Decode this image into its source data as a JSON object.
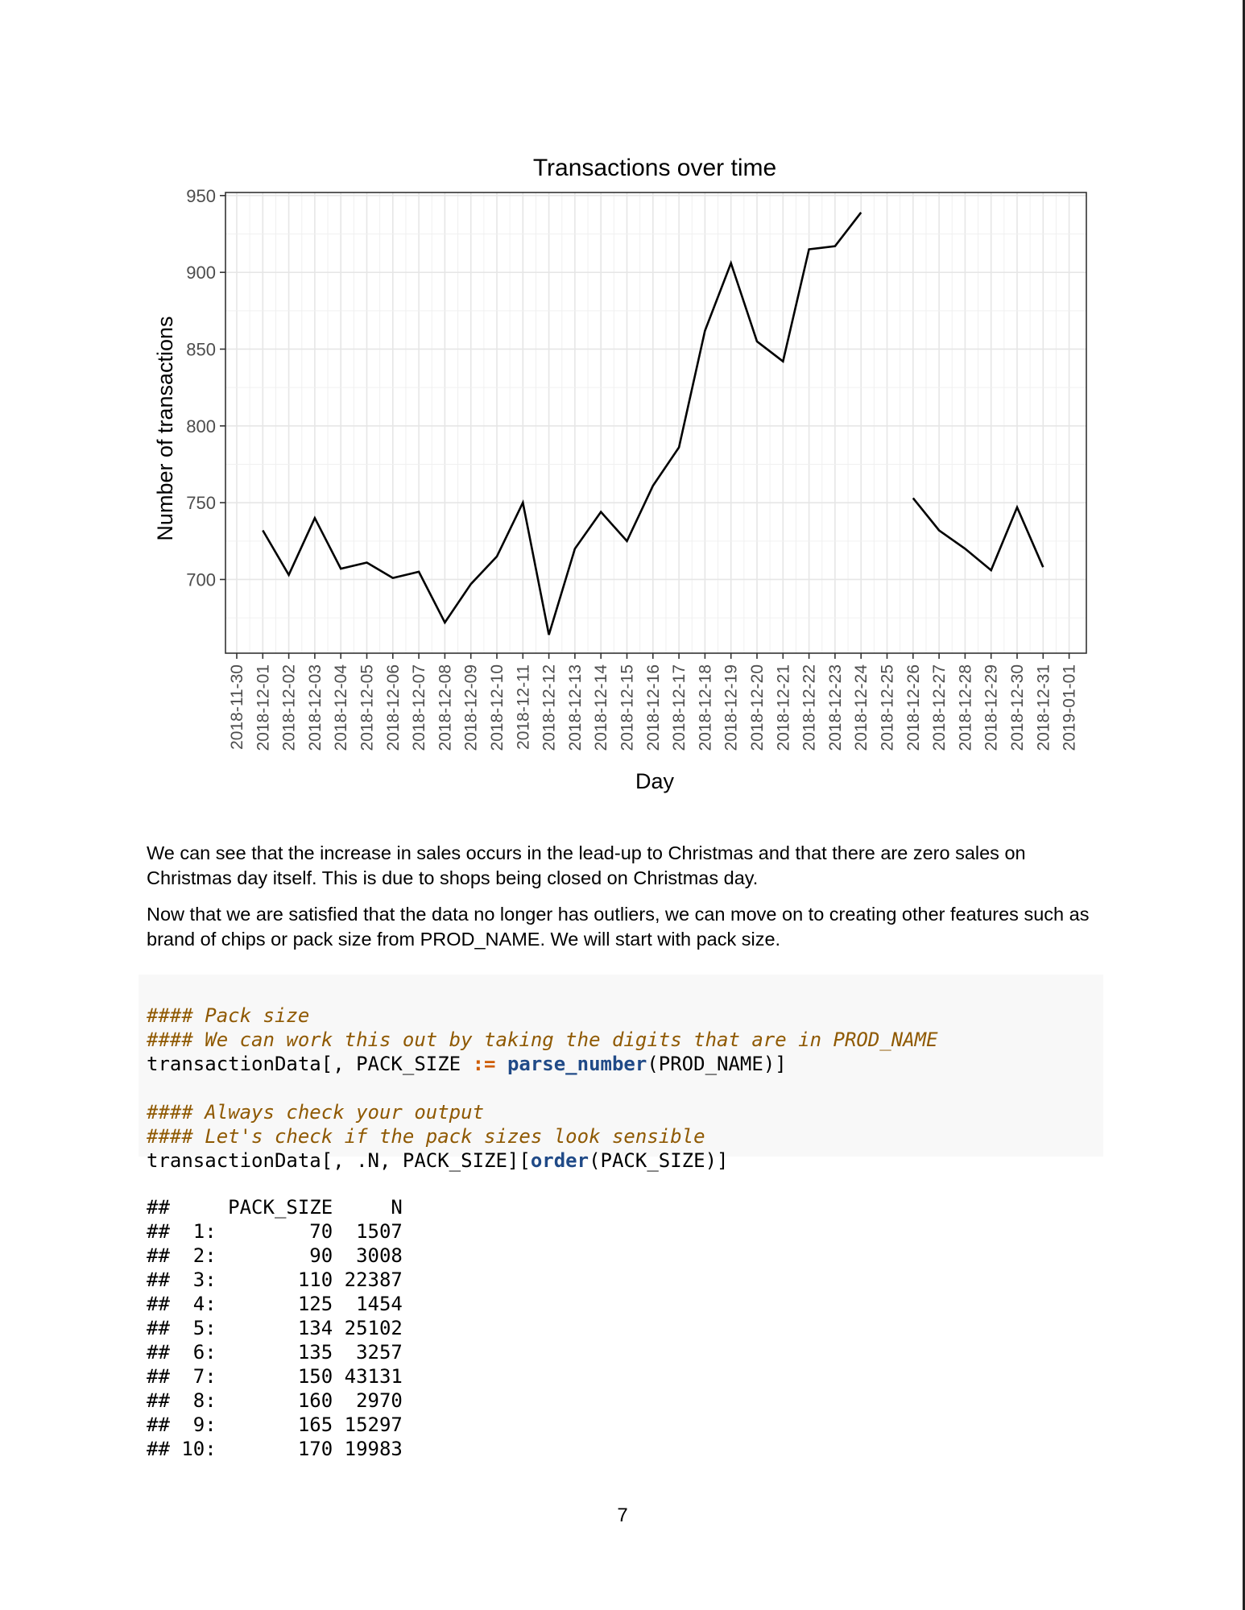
{
  "chart_data": {
    "type": "line",
    "title": "Transactions over time",
    "xlabel": "Day",
    "ylabel": "Number of transactions",
    "y_ticks": [
      700,
      750,
      800,
      850,
      900,
      950
    ],
    "ylim": [
      652,
      952
    ],
    "x_ticks": [
      "2018-11-30",
      "2018-12-01",
      "2018-12-02",
      "2018-12-03",
      "2018-12-04",
      "2018-12-05",
      "2018-12-06",
      "2018-12-07",
      "2018-12-08",
      "2018-12-09",
      "2018-12-10",
      "2018-12-11",
      "2018-12-12",
      "2018-12-13",
      "2018-12-14",
      "2018-12-15",
      "2018-12-16",
      "2018-12-17",
      "2018-12-18",
      "2018-12-19",
      "2018-12-20",
      "2018-12-21",
      "2018-12-22",
      "2018-12-23",
      "2018-12-24",
      "2018-12-25",
      "2018-12-26",
      "2018-12-27",
      "2018-12-28",
      "2018-12-29",
      "2018-12-30",
      "2018-12-31",
      "2019-01-01"
    ],
    "series": [
      {
        "values": [
          null,
          732,
          703,
          740,
          707,
          711,
          701,
          705,
          672,
          697,
          715,
          750,
          664,
          720,
          744,
          725,
          761,
          786,
          862,
          906,
          855,
          842,
          915,
          917,
          939,
          null,
          753,
          732,
          720,
          706,
          747,
          708,
          null
        ]
      }
    ],
    "grid": true,
    "legend": "none"
  },
  "text": {
    "para1": "We can see that the increase in sales occurs in the lead-up to Christmas and that there are zero sales on Christmas day itself. This is due to shops being closed on Christmas day.",
    "para2": "Now that we are satisfied that the data no longer has outliers, we can move on to creating other features such as brand of chips or pack size from PROD_NAME. We will start with pack size."
  },
  "code": {
    "c1": "#### Pack size",
    "c2": "#### We can work this out by taking the digits that are in PROD_NAME",
    "l3_a": "transactionData[, PACK_SIZE ",
    "l3_op": ":=",
    "l3_sp": " ",
    "l3_fn": "parse_number",
    "l3_b": "(PROD_NAME)]",
    "c4": "#### Always check your output",
    "c5": "#### Let's check if the pack sizes look sensible",
    "l6_a": "transactionData[, .N, PACK_SIZE][",
    "l6_fn": "order",
    "l6_b": "(PACK_SIZE)]"
  },
  "output": {
    "header": "##     PACK_SIZE     N",
    "rows": [
      "##  1:        70  1507",
      "##  2:        90  3008",
      "##  3:       110 22387",
      "##  4:       125  1454",
      "##  5:       134 25102",
      "##  6:       135  3257",
      "##  7:       150 43131",
      "##  8:       160  2970",
      "##  9:       165 15297",
      "## 10:       170 19983"
    ]
  },
  "page_number": "7"
}
